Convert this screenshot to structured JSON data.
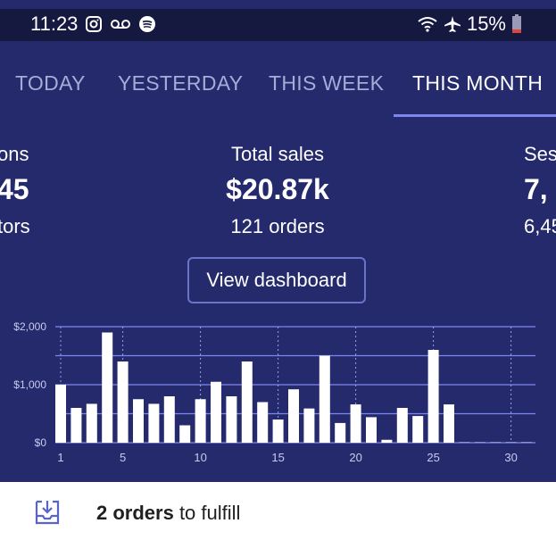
{
  "status_bar": {
    "time": "11:23",
    "battery": "15%",
    "left_icons": [
      "instagram-icon",
      "voicemail-icon",
      "spotify-icon"
    ],
    "right_icons": [
      "wifi-icon",
      "airplane-icon",
      "battery-low-icon"
    ]
  },
  "tabs": [
    {
      "label": "TODAY",
      "active": false
    },
    {
      "label": "YESTERDAY",
      "active": false
    },
    {
      "label": "THIS WEEK",
      "active": false
    },
    {
      "label": "THIS MONTH",
      "active": true
    }
  ],
  "stats": {
    "left": {
      "label": "ons",
      "value": "45",
      "sub": "tors"
    },
    "center": {
      "label": "Total sales",
      "value": "$20.87k",
      "sub": "121 orders"
    },
    "right": {
      "label": "Ses",
      "value": "7,",
      "sub": "6,45"
    }
  },
  "dashboard_button": "View dashboard",
  "chart_data": {
    "type": "bar",
    "x": [
      1,
      2,
      3,
      4,
      5,
      6,
      7,
      8,
      9,
      10,
      11,
      12,
      13,
      14,
      15,
      16,
      17,
      18,
      19,
      20,
      21,
      22,
      23,
      24,
      25,
      26,
      27,
      28,
      29,
      30,
      31
    ],
    "values": [
      1000,
      600,
      670,
      1900,
      1400,
      750,
      670,
      800,
      300,
      750,
      1050,
      800,
      1400,
      700,
      400,
      920,
      590,
      1500,
      340,
      660,
      440,
      50,
      600,
      460,
      1600,
      660,
      0,
      0,
      0,
      0,
      0
    ],
    "y_tick_labels": [
      "$0",
      "$1,000",
      "$2,000"
    ],
    "x_tick_labels": [
      "1",
      "5",
      "10",
      "15",
      "20",
      "25",
      "30"
    ],
    "ylim": [
      0,
      2000
    ],
    "grid": true,
    "colors": {
      "bar": "#ffffff",
      "grid": "#7d86f0",
      "axis_text": "#c8cbef"
    }
  },
  "fulfill": {
    "icon": "download-tray-icon",
    "bold": "2 orders",
    "rest": " to fulfill"
  },
  "colors": {
    "background": "#252a6d",
    "status_bar": "#15183f",
    "accent": "#7d86f0"
  }
}
